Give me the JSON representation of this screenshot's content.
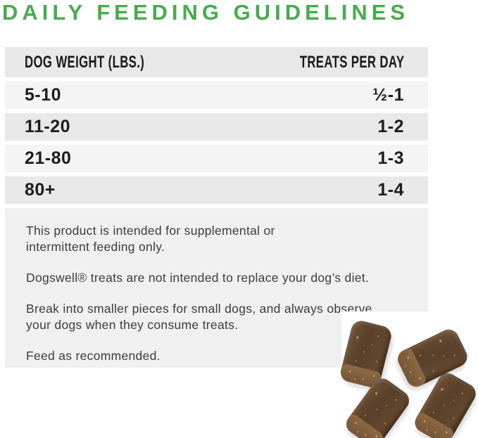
{
  "title": "DAILY FEEDING GUIDELINES",
  "colors": {
    "accent_green": "#47ab4e",
    "header_row_bg": "#e8e8e8",
    "row_light_bg": "#f4f4f4",
    "row_dark_bg": "#e8e8e8",
    "notes_bg": "#f0f0f0",
    "table_text": "#1d1d1b",
    "body_text": "#3c3c3b",
    "treat_brown": "#5a402a",
    "treat_crumb": "#8d6a43"
  },
  "table": {
    "columns": {
      "weight": "DOG WEIGHT (LBS.)",
      "treats": "TREATS PER DAY"
    },
    "rows": [
      {
        "weight": "5-10",
        "treats": "½-1"
      },
      {
        "weight": "11-20",
        "treats": "1-2"
      },
      {
        "weight": "21-80",
        "treats": "1-3"
      },
      {
        "weight": "80+",
        "treats": "1-4"
      }
    ]
  },
  "notes": {
    "paragraphs": [
      "This product is intended for supplemental or intermittent feeding only.",
      "Dogswell® treats are not intended to replace your dog’s diet.",
      "Break into smaller pieces for small dogs, and always observe your dogs when they consume treats.",
      "Feed as recommended."
    ]
  },
  "image": {
    "description": "photo of four brown soft-chew dog treats on white background",
    "treat_count": 4
  }
}
